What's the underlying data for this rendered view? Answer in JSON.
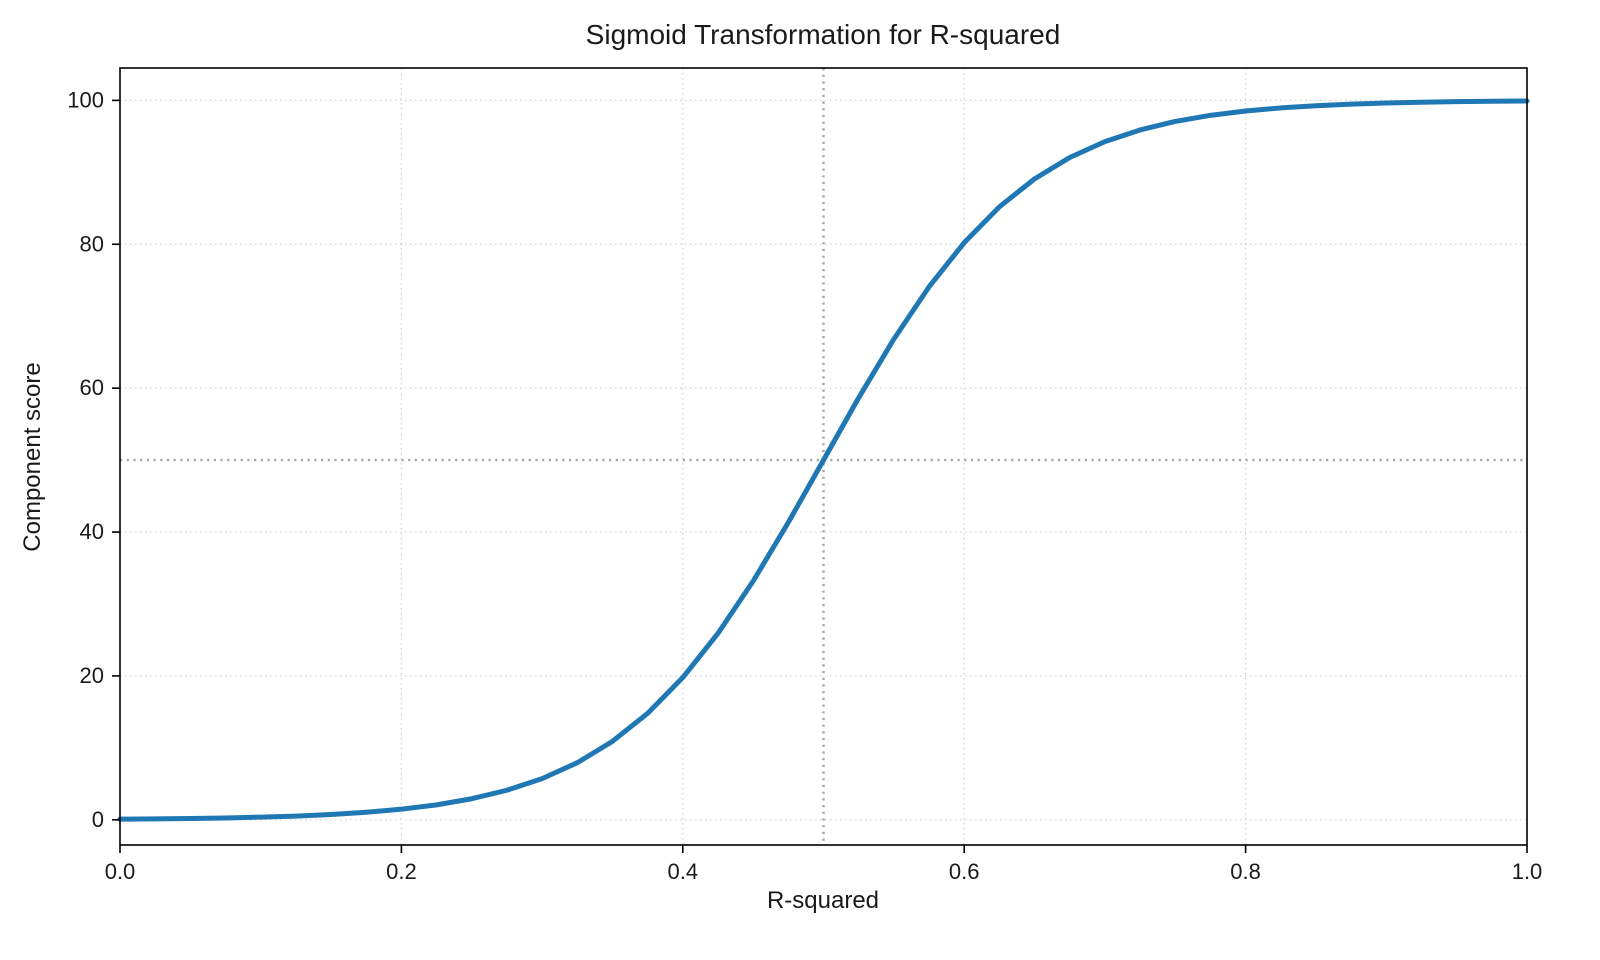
{
  "chart_data": {
    "type": "line",
    "title": "Sigmoid Transformation for R-squared",
    "xlabel": "R-squared",
    "ylabel": "Component score",
    "xlim": [
      0.0,
      1.0
    ],
    "ylim": [
      -3.5,
      104.5
    ],
    "grid": {
      "visible": true,
      "style": "dotted",
      "color": "#d0d0d0"
    },
    "axis_color": "#000000",
    "text_color": "#1a1a1a",
    "x_ticks": [
      {
        "value": 0.0,
        "label": "0.0"
      },
      {
        "value": 0.2,
        "label": "0.2"
      },
      {
        "value": 0.4,
        "label": "0.4"
      },
      {
        "value": 0.6,
        "label": "0.6"
      },
      {
        "value": 0.8,
        "label": "0.8"
      },
      {
        "value": 1.0,
        "label": "1.0"
      }
    ],
    "y_ticks": [
      {
        "value": 0,
        "label": "0"
      },
      {
        "value": 20,
        "label": "20"
      },
      {
        "value": 40,
        "label": "40"
      },
      {
        "value": 60,
        "label": "60"
      },
      {
        "value": 80,
        "label": "80"
      },
      {
        "value": 100,
        "label": "100"
      }
    ],
    "reference_lines": [
      {
        "orientation": "vertical",
        "value": 0.5,
        "style": "dotted",
        "color": "#a6a6a6"
      },
      {
        "orientation": "horizontal",
        "value": 50,
        "style": "dotted",
        "color": "#a6a6a6"
      }
    ],
    "series": [
      {
        "name": "sigmoid-curve",
        "color": "#1f77b4",
        "line_width": 5,
        "x": [
          0,
          0.025,
          0.05,
          0.075,
          0.1,
          0.125,
          0.15,
          0.175,
          0.2,
          0.225,
          0.25,
          0.275,
          0.3,
          0.325,
          0.35,
          0.375,
          0.4,
          0.425,
          0.45,
          0.475,
          0.5,
          0.525,
          0.55,
          0.575,
          0.6,
          0.625,
          0.65,
          0.675,
          0.7,
          0.725,
          0.75,
          0.775,
          0.8,
          0.825,
          0.85,
          0.875,
          0.9,
          0.925,
          0.95,
          0.975,
          1.0
        ],
        "y": [
          0.09,
          0.13,
          0.18,
          0.26,
          0.37,
          0.52,
          0.74,
          1.05,
          1.48,
          2.08,
          2.93,
          4.11,
          5.73,
          7.94,
          10.91,
          14.8,
          19.78,
          25.92,
          33.18,
          41.34,
          50.0,
          58.66,
          66.82,
          74.08,
          80.22,
          85.2,
          89.09,
          92.06,
          94.27,
          95.89,
          97.07,
          97.92,
          98.52,
          98.95,
          99.26,
          99.48,
          99.63,
          99.74,
          99.82,
          99.87,
          99.91
        ]
      }
    ],
    "legend": {
      "visible": false
    }
  }
}
